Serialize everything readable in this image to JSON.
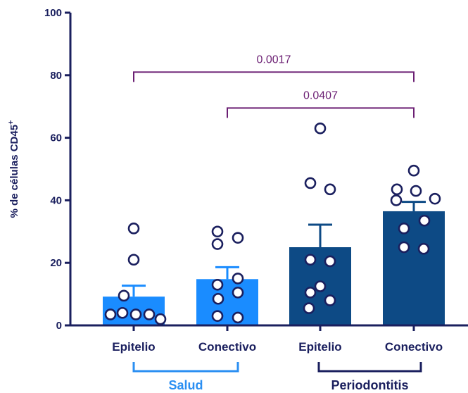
{
  "chart_data": {
    "type": "bar",
    "ylabel": "% de células CD45",
    "ylabel_superscript": "+",
    "ylim": [
      0,
      100
    ],
    "yticks": [
      "0",
      "20",
      "40",
      "60",
      "80",
      "100"
    ],
    "categories": [
      "Epitelio",
      "Conectivo",
      "Epitelio",
      "Conectivo"
    ],
    "groups": [
      {
        "label": "Salud",
        "color": "#2b8ff2",
        "members": [
          0,
          1
        ]
      },
      {
        "label": "Periodontitis",
        "color": "#1a1f5e",
        "members": [
          2,
          3
        ]
      }
    ],
    "bar_colors": [
      "#1a8cff",
      "#1a8cff",
      "#0d4a85",
      "#0d4a85"
    ],
    "values": [
      9.2,
      14.8,
      25.0,
      36.5
    ],
    "errors": [
      3.5,
      3.8,
      7.2,
      3.0
    ],
    "points": [
      [
        31,
        21,
        9.5,
        3.5,
        4,
        3.5,
        3.5,
        2
      ],
      [
        30,
        28,
        26,
        15,
        13,
        10.5,
        8.5,
        3,
        2.5
      ],
      [
        63,
        45.5,
        43.5,
        21,
        20.5,
        12.5,
        10.5,
        8,
        5.5
      ],
      [
        49.5,
        43.5,
        43,
        40.5,
        40,
        33.5,
        31,
        25,
        24.5
      ]
    ],
    "comparisons": [
      {
        "from": 0,
        "to": 3,
        "y": 81,
        "label": "0.0017"
      },
      {
        "from": 1,
        "to": 3,
        "y": 69.5,
        "label": "0.0407"
      }
    ],
    "axis_color": "#1a1f5e",
    "marker_color": "#1a1f5e",
    "comparison_color": "#6b1f73"
  }
}
